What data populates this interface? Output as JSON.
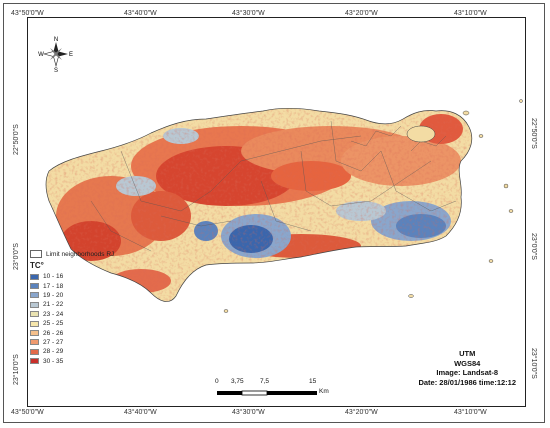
{
  "map": {
    "top_ticks": [
      "43°50'0\"W",
      "43°40'0\"W",
      "43°30'0\"W",
      "43°20'0\"W",
      "43°10'0\"W"
    ],
    "bottom_ticks": [
      "43°50'0\"W",
      "43°40'0\"W",
      "43°30'0\"W",
      "43°20'0\"W",
      "43°10'0\"W"
    ],
    "left_ticks": [
      "22°50'0\"S",
      "23°0'0\"S",
      "23°10'0\"S"
    ],
    "right_ticks": [
      "22°50'0\"S",
      "23°0'0\"S",
      "23°10'0\"S"
    ]
  },
  "compass": {
    "n": "N",
    "s": "S",
    "e": "E",
    "w": "W"
  },
  "legend": {
    "limit_label": "Limit neighborhoods RJ",
    "title": "TC°",
    "classes": [
      {
        "label": "10 - 16",
        "color": "#3a66ad"
      },
      {
        "label": "17 - 18",
        "color": "#5b83bd"
      },
      {
        "label": "19 - 20",
        "color": "#8aa6cc"
      },
      {
        "label": "21 - 22",
        "color": "#b9c8d3"
      },
      {
        "label": "23 - 24",
        "color": "#eae3b2"
      },
      {
        "label": "25 - 25",
        "color": "#f6e6ab"
      },
      {
        "label": "26 - 26",
        "color": "#f5c08c"
      },
      {
        "label": "27 - 27",
        "color": "#ef9a6f"
      },
      {
        "label": "28 - 29",
        "color": "#e26a4a"
      },
      {
        "label": "30 - 35",
        "color": "#c9302a"
      }
    ]
  },
  "info": {
    "projection": "UTM",
    "datum": "WGS84",
    "image": "Image: Landsat-8",
    "date": "Date: 28/01/1986 time:12:12"
  },
  "scale": {
    "labels": [
      "0",
      "3,75",
      "7,5",
      "15"
    ],
    "unit": "Km"
  }
}
